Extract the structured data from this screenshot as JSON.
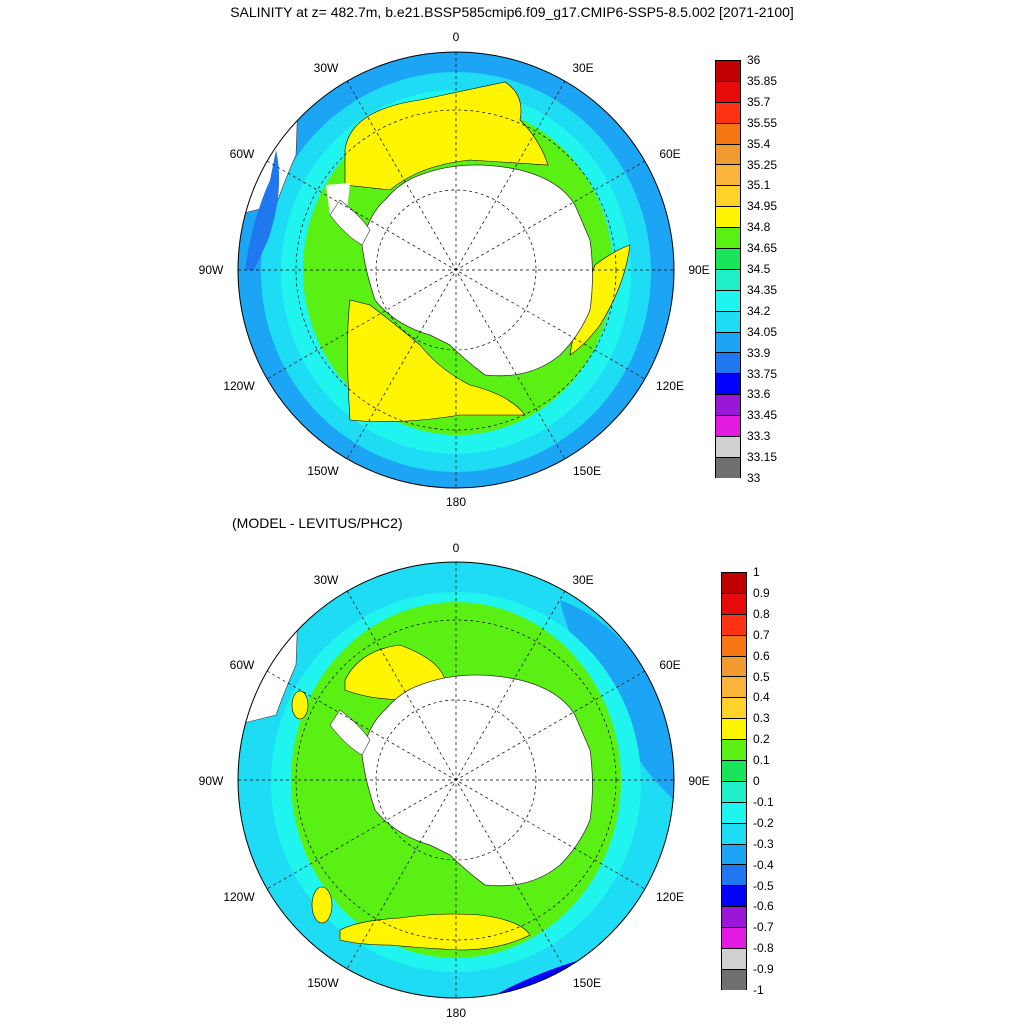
{
  "title": "SALINITY at z= 482.7m, b.e21.BSSP585cmip6.f09_g17.CMIP6-SSP5-8.5.002 [2071-2100]",
  "subtitle": "(MODEL - LEVITUS/PHC2)",
  "longitude_labels": {
    "lon_0": "0",
    "lon_30E": "30E",
    "lon_60E": "60E",
    "lon_90E": "90E",
    "lon_120E": "120E",
    "lon_150E": "150E",
    "lon_180": "180",
    "lon_150W": "150W",
    "lon_120W": "120W",
    "lon_90W": "90W",
    "lon_60W": "60W",
    "lon_30W": "30W"
  },
  "colors": {
    "land": "#ffffff",
    "salinity_scale": [
      "#707070",
      "#d0d0d0",
      "#e21ae2",
      "#9a17d8",
      "#0000ff",
      "#1f78f0",
      "#1ca5f5",
      "#1fdcf5",
      "#1ff5ee",
      "#1ff0c8",
      "#19e55a",
      "#5af014",
      "#fff500",
      "#ffd22a",
      "#fab43c",
      "#f09b32",
      "#f57814",
      "#ff3214",
      "#e60a0a",
      "#c00000"
    ],
    "difference_scale": [
      "#707070",
      "#d0d0d0",
      "#e21ae2",
      "#9a17d8",
      "#0000ff",
      "#1f78f0",
      "#1ca5f5",
      "#1fdcf5",
      "#1ff5ee",
      "#1ff0c8",
      "#19e55a",
      "#5af014",
      "#fff500",
      "#ffd22a",
      "#fab43c",
      "#f09b32",
      "#f57814",
      "#ff3214",
      "#e60a0a",
      "#c00000"
    ]
  },
  "chart_data": [
    {
      "type": "heatmap",
      "projection": "south polar stereographic",
      "title": "SALINITY at z= 482.7m, b.e21.BSSP585cmip6.f09_g17.CMIP6-SSP5-8.5.002 [2071-2100]",
      "colorbar_ticks": [
        "33",
        "33.15",
        "33.3",
        "33.45",
        "33.6",
        "33.75",
        "33.9",
        "34.05",
        "34.2",
        "34.35",
        "34.5",
        "34.65",
        "34.8",
        "34.95",
        "35.1",
        "35.25",
        "35.4",
        "35.55",
        "35.7",
        "35.85",
        "36"
      ],
      "range": [
        33,
        36
      ],
      "dominant_ranges": [
        {
          "min": 34.8,
          "max": 34.95,
          "region": "Weddell and Ross gyres, Indian sector near 90E"
        },
        {
          "min": 34.65,
          "max": 34.8,
          "region": "circumpolar band around Antarctica"
        },
        {
          "min": 34.05,
          "max": 34.5,
          "region": "outer ring north of the Antarctic Circumpolar Current"
        }
      ]
    },
    {
      "type": "heatmap",
      "projection": "south polar stereographic",
      "title": "(MODEL - LEVITUS/PHC2)",
      "colorbar_ticks": [
        "-1",
        "-0.9",
        "-0.8",
        "-0.7",
        "-0.6",
        "-0.5",
        "-0.4",
        "-0.3",
        "-0.2",
        "-0.1",
        "0",
        "0.1",
        "0.2",
        "0.3",
        "0.4",
        "0.5",
        "0.6",
        "0.7",
        "0.8",
        "0.9",
        "1"
      ],
      "range": [
        -1,
        1
      ],
      "dominant_ranges": [
        {
          "min": 0.1,
          "max": 0.2,
          "region": "broad area around Antarctica"
        },
        {
          "min": 0.2,
          "max": 0.3,
          "region": "Weddell Sea and Ross Sea patches"
        },
        {
          "min": -0.3,
          "max": -0.1,
          "region": "outer ring to the north"
        }
      ]
    }
  ]
}
